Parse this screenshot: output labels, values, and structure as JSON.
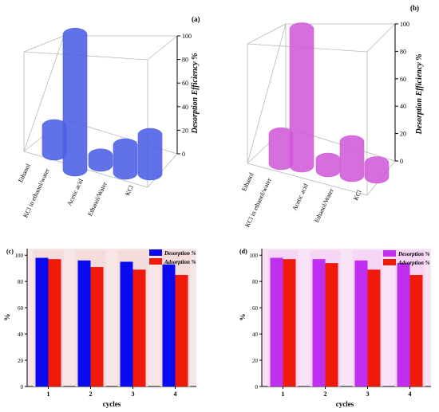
{
  "panels": {
    "a": {
      "label": "(a)"
    },
    "b": {
      "label": "(b)"
    },
    "c": {
      "label": "(c)"
    },
    "d": {
      "label": "(d)"
    }
  },
  "colors": {
    "a_bar": "#4b5ee6",
    "b_bar": "#d05ad8",
    "c_desorption": "#0a0af0",
    "c_adsorption": "#f01a0a",
    "d_desorption": "#c02ef0",
    "d_adsorption": "#f01a0a",
    "lower_bg_c": "#f4dcdc",
    "lower_bg_d": "#f6d6f4"
  },
  "chart_data": [
    {
      "panel": "a",
      "type": "bar",
      "categories": [
        "Ethanol",
        "KCl in ethanol/water",
        "Acetic acid",
        "Ethanol/Water",
        "KCl"
      ],
      "values": [
        20,
        97,
        7,
        20,
        28
      ],
      "zlabel": "Desorption Efficiency %",
      "zlim": [
        0,
        100
      ],
      "zticks": [
        "0",
        "20",
        "40",
        "60",
        "80",
        "100"
      ]
    },
    {
      "panel": "b",
      "type": "bar",
      "categories": [
        "Ethanol",
        "KCl in ethanol/water",
        "Acetic acid",
        "Ethanol/Water",
        "KCl"
      ],
      "values": [
        21,
        98,
        8,
        24,
        10
      ],
      "zlabel": "Desorption Efficiency %",
      "zlim": [
        0,
        100
      ],
      "zticks": [
        "0",
        "20",
        "40",
        "60",
        "80",
        "100"
      ]
    },
    {
      "panel": "c",
      "type": "bar",
      "categories": [
        "1",
        "2",
        "3",
        "4"
      ],
      "series": [
        {
          "name": "Desorption %",
          "values": [
            98,
            96,
            95,
            93
          ]
        },
        {
          "name": "Adsorption %",
          "values": [
            97,
            91,
            89,
            85
          ]
        }
      ],
      "xlabel": "cycles",
      "ylabel": "%",
      "ylim": [
        0,
        105
      ],
      "yticks": [
        "0",
        "20",
        "40",
        "60",
        "80",
        "100"
      ],
      "legend": "top-right"
    },
    {
      "panel": "d",
      "type": "bar",
      "categories": [
        "1",
        "2",
        "3",
        "4"
      ],
      "series": [
        {
          "name": "Desorption %",
          "values": [
            98,
            97,
            96,
            94
          ]
        },
        {
          "name": "Adsorption %",
          "values": [
            97,
            94,
            89,
            85
          ]
        }
      ],
      "xlabel": "cycles",
      "ylabel": "%",
      "ylim": [
        0,
        105
      ],
      "yticks": [
        "0",
        "20",
        "40",
        "60",
        "80",
        "100"
      ],
      "legend": "top-right"
    }
  ]
}
